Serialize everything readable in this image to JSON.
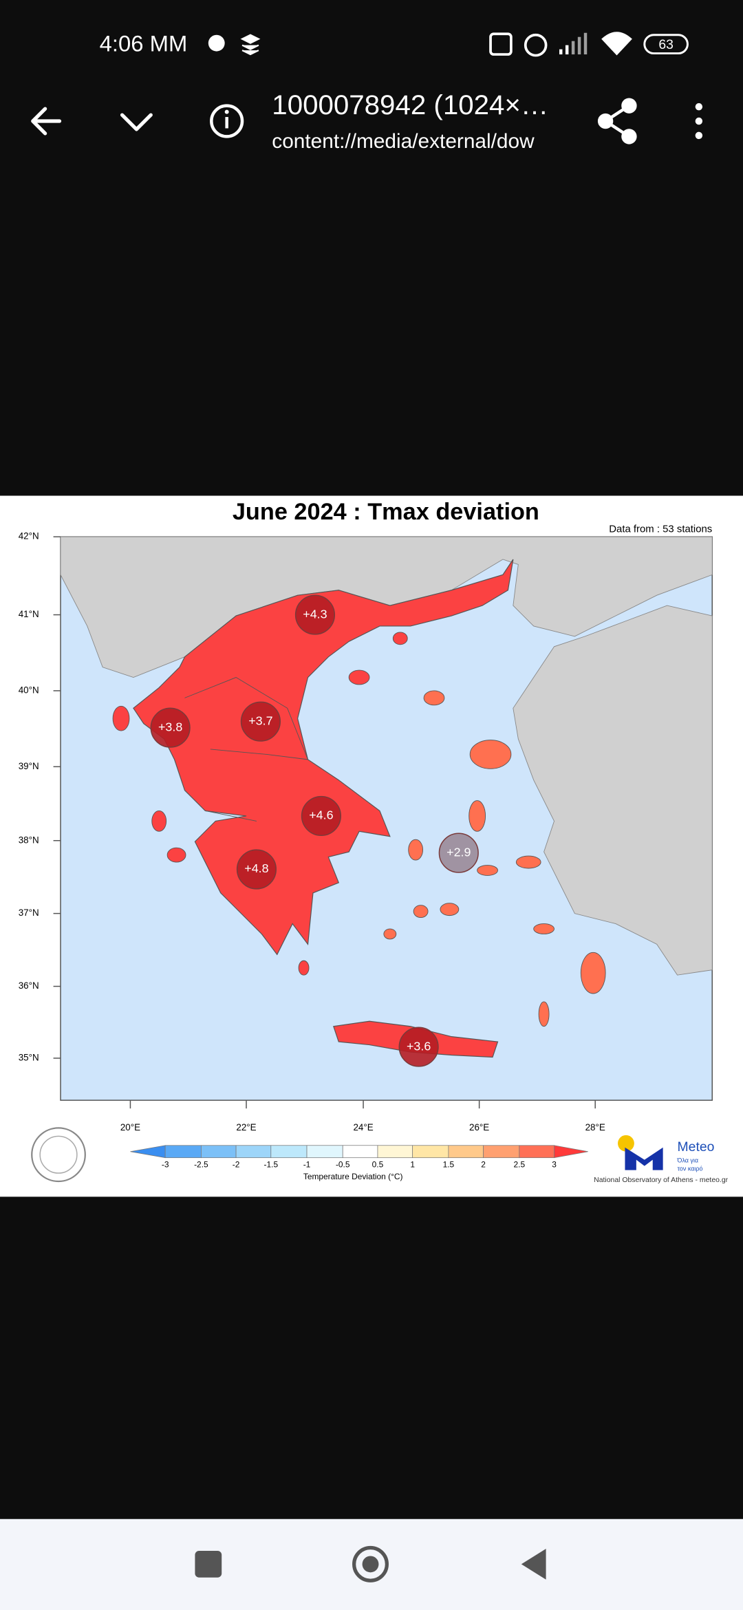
{
  "status_bar": {
    "time": "4:06 MM",
    "battery": "63"
  },
  "toolbar": {
    "title": "1000078942 (1024×…",
    "subtitle": "content://media/external/dow"
  },
  "map": {
    "title": "June 2024 : Tmax deviation",
    "note": "Data from : 53 stations",
    "lat_labels": [
      "42°N",
      "41°N",
      "40°N",
      "39°N",
      "38°N",
      "37°N",
      "36°N",
      "35°N"
    ],
    "lon_labels": [
      "20°E",
      "22°E",
      "24°E",
      "26°E",
      "28°E"
    ],
    "regions": [
      {
        "label": "+4.3"
      },
      {
        "label": "+3.8"
      },
      {
        "label": "+3.7"
      },
      {
        "label": "+4.6"
      },
      {
        "label": "+2.9"
      },
      {
        "label": "+4.8"
      },
      {
        "label": "+3.6"
      }
    ],
    "colorbar": {
      "ticks": [
        "-3",
        "-2.5",
        "-2",
        "-1.5",
        "-1",
        "-0.5",
        "0.5",
        "1",
        "1.5",
        "2",
        "2.5",
        "3"
      ],
      "label": "Temperature Deviation (°C)"
    },
    "logo": {
      "name": "Meteo",
      "tagline": [
        "Όλα για",
        "τον καιρό"
      ]
    },
    "credit": "National Observatory of Athens - meteo.gr"
  }
}
